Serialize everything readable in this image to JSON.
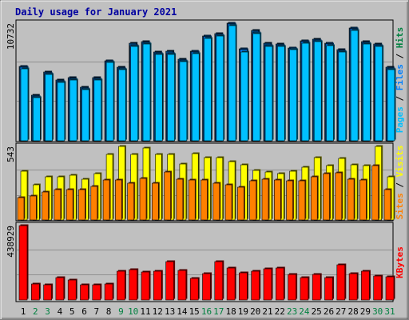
{
  "chart_data": [
    {
      "type": "bar",
      "title": "Daily usage for January 2021",
      "max_label": "10732",
      "legend": [
        "Pages",
        "Files",
        "Hits"
      ],
      "legend_colors": [
        "#00c0ff",
        "#0080ff",
        "#008040"
      ],
      "categories": [
        "1",
        "2",
        "3",
        "4",
        "5",
        "6",
        "7",
        "8",
        "9",
        "10",
        "11",
        "12",
        "13",
        "14",
        "15",
        "16",
        "17",
        "18",
        "19",
        "20",
        "21",
        "22",
        "23",
        "24",
        "25",
        "26",
        "27",
        "28",
        "29",
        "30",
        "31"
      ],
      "series": [
        {
          "name": "Hits",
          "color": "#004880",
          "values": [
            6400,
            3900,
            5900,
            5200,
            5400,
            4600,
            5400,
            6900,
            6300,
            8400,
            8500,
            7600,
            7700,
            7000,
            7700,
            9000,
            9200,
            10100,
            7900,
            9500,
            8400,
            8300,
            8000,
            8600,
            8700,
            8400,
            7800,
            9700,
            8500,
            8300,
            6300
          ]
        },
        {
          "name": "Files",
          "color": "#0080ff",
          "values": [
            6300,
            3800,
            5800,
            5100,
            5300,
            4500,
            5300,
            6800,
            6200,
            8200,
            8400,
            7500,
            7500,
            6900,
            7600,
            8900,
            9100,
            10000,
            7800,
            9300,
            8200,
            8200,
            7900,
            8500,
            8600,
            8300,
            7700,
            9600,
            8400,
            8200,
            6200
          ]
        },
        {
          "name": "Pages",
          "color": "#00c0ff",
          "values": [
            6200,
            3700,
            5700,
            5000,
            5200,
            4400,
            5200,
            6700,
            6100,
            8100,
            8300,
            7400,
            7400,
            6800,
            7500,
            8800,
            9000,
            9900,
            7600,
            9200,
            8100,
            8100,
            7800,
            8400,
            8500,
            8200,
            7600,
            9500,
            8300,
            8100,
            6100
          ]
        }
      ]
    },
    {
      "type": "bar",
      "max_label": "543",
      "legend": [
        "Sites",
        "Visits"
      ],
      "legend_colors": [
        "#ff8000",
        "#ffff00"
      ],
      "categories": [
        "1",
        "2",
        "3",
        "4",
        "5",
        "6",
        "7",
        "8",
        "9",
        "10",
        "11",
        "12",
        "13",
        "14",
        "15",
        "16",
        "17",
        "18",
        "19",
        "20",
        "21",
        "22",
        "23",
        "24",
        "25",
        "26",
        "27",
        "28",
        "29",
        "30",
        "31"
      ],
      "series": [
        {
          "name": "Visits",
          "color": "#ffff00",
          "values": [
            345,
            247,
            306,
            306,
            314,
            290,
            330,
            462,
            520,
            464,
            508,
            464,
            462,
            398,
            470,
            440,
            440,
            410,
            392,
            350,
            340,
            330,
            345,
            374,
            442,
            384,
            436,
            392,
            384,
            520,
            306
          ]
        },
        {
          "name": "Sites",
          "color": "#ff8000",
          "values": [
            160,
            172,
            195,
            212,
            212,
            212,
            240,
            283,
            283,
            258,
            294,
            258,
            340,
            290,
            283,
            283,
            258,
            250,
            230,
            276,
            290,
            283,
            276,
            276,
            308,
            330,
            334,
            290,
            283,
            383,
            212
          ]
        }
      ]
    },
    {
      "type": "bar",
      "max_label": "438929",
      "legend": [
        "KBytes"
      ],
      "legend_colors": [
        "#ff0000"
      ],
      "categories": [
        "1",
        "2",
        "3",
        "4",
        "5",
        "6",
        "7",
        "8",
        "9",
        "10",
        "11",
        "12",
        "13",
        "14",
        "15",
        "16",
        "17",
        "18",
        "19",
        "20",
        "21",
        "22",
        "23",
        "24",
        "25",
        "26",
        "27",
        "28",
        "29",
        "30",
        "31"
      ],
      "series": [
        {
          "name": "KBytes",
          "color": "#ff0000",
          "values": [
            438929,
            96000,
            88000,
            132000,
            120000,
            88000,
            92000,
            96000,
            172000,
            180000,
            166000,
            172000,
            228000,
            176000,
            128000,
            156000,
            228000,
            190000,
            160000,
            170000,
            185000,
            190000,
            150000,
            130000,
            150000,
            130000,
            210000,
            155000,
            170000,
            140000,
            136000
          ]
        }
      ]
    }
  ],
  "x_label_colors": {
    "weekday": "#000000",
    "weekend": "#008040"
  },
  "weekend_days": [
    2,
    3,
    9,
    10,
    16,
    17,
    23,
    24,
    30,
    31
  ]
}
